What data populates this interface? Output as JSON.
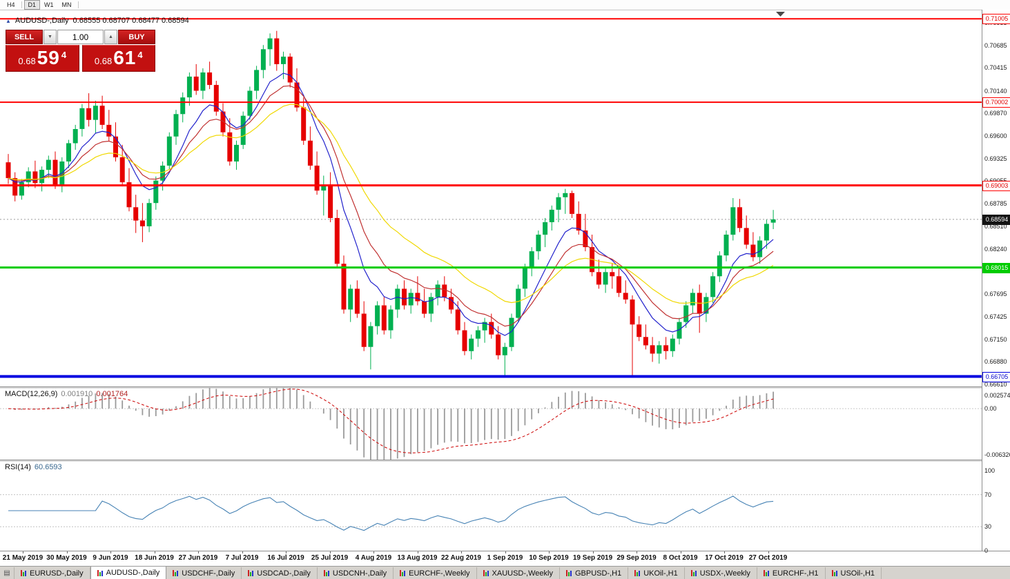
{
  "icons": {
    "symbol_marker": "▲",
    "spinner_down": "▼",
    "spinner_up": "▲",
    "tab_list": "▤"
  },
  "toolbar": {
    "timeframes": [
      {
        "label": "H4",
        "active": false
      },
      {
        "label": "D1",
        "active": true
      },
      {
        "label": "W1",
        "active": false
      },
      {
        "label": "MN",
        "active": false
      }
    ]
  },
  "chart": {
    "symbol_title": "AUDUSD-,Daily",
    "ohlc": "0.68555 0.68707 0.68477 0.68594"
  },
  "trade_panel": {
    "sell_label": "SELL",
    "buy_label": "BUY",
    "volume": "1.00",
    "sell_price": {
      "prefix": "0.68",
      "big": "59",
      "sup": "4"
    },
    "buy_price": {
      "prefix": "0.68",
      "big": "61",
      "sup": "4"
    }
  },
  "macd_panel": {
    "name": "MACD(12,26,9)",
    "value_main": "0.001910",
    "value_signal": "0.001764",
    "scale_top": "0.002574",
    "scale_zero": "0.00",
    "scale_bottom": "-0.006326"
  },
  "rsi_panel": {
    "name": "RSI(14)",
    "value": "60.6593",
    "scale": [
      "100",
      "70",
      "30",
      "0"
    ]
  },
  "tabs": {
    "items": [
      {
        "label": "EURUSD-,Daily",
        "active": false
      },
      {
        "label": "AUDUSD-,Daily",
        "active": true
      },
      {
        "label": "USDCHF-,Daily",
        "active": false
      },
      {
        "label": "USDCAD-,Daily",
        "active": false
      },
      {
        "label": "USDCNH-,Daily",
        "active": false
      },
      {
        "label": "EURCHF-,Weekly",
        "active": false
      },
      {
        "label": "XAUUSD-,Weekly",
        "active": false
      },
      {
        "label": "GBPUSD-,H1",
        "active": false
      },
      {
        "label": "UKOil-,H1",
        "active": false
      },
      {
        "label": "USDX-,Weekly",
        "active": false
      },
      {
        "label": "EURCHF-,H1",
        "active": false
      },
      {
        "label": "USOil-,H1",
        "active": false
      }
    ]
  },
  "chart_data": {
    "type": "candlestick",
    "title": "AUDUSD-,Daily",
    "ylim": [
      0.66585,
      0.71115
    ],
    "layout": {
      "first_x": 12,
      "spacing": 9.72,
      "body_width": 7,
      "grid": false
    },
    "colors": {
      "up": "#00b050",
      "down": "#e60000",
      "background": "#ffffff"
    },
    "y_ticks": [
      "0.70955",
      "0.70685",
      "0.70415",
      "0.70140",
      "0.69870",
      "0.69600",
      "0.69325",
      "0.69055",
      "0.68785",
      "0.68510",
      "0.68240",
      "0.67970",
      "0.67695",
      "0.67425",
      "0.67150",
      "0.66880",
      "0.66610"
    ],
    "x_labels": [
      "21 May 2019",
      "30 May 2019",
      "9 Jun 2019",
      "18 Jun 2019",
      "27 Jun 2019",
      "7 Jul 2019",
      "16 Jul 2019",
      "25 Jul 2019",
      "4 Aug 2019",
      "13 Aug 2019",
      "22 Aug 2019",
      "1 Sep 2019",
      "10 Sep 2019",
      "19 Sep 2019",
      "29 Sep 2019",
      "8 Oct 2019",
      "17 Oct 2019",
      "27 Oct 2019"
    ],
    "current_price": {
      "value": 0.68594,
      "label": "0.68594"
    },
    "hlines": [
      {
        "price": 0.71005,
        "label": "0.71005",
        "color": "#ff0000",
        "width": 2,
        "tag_bg": "#ffffff",
        "tag_fg": "#e00000"
      },
      {
        "price": 0.70002,
        "label": "0.70002",
        "color": "#ff0000",
        "width": 2,
        "tag_bg": "#ffffff",
        "tag_fg": "#e00000"
      },
      {
        "price": 0.69003,
        "label": "0.69003",
        "color": "#ff0000",
        "width": 3,
        "tag_bg": "#ffffff",
        "tag_fg": "#e00000"
      },
      {
        "price": 0.68015,
        "label": "0.68015",
        "color": "#00cc00",
        "width": 3,
        "tag_bg": "#00cc00",
        "tag_fg": "#ffffff"
      },
      {
        "price": 0.66705,
        "label": "0.66705",
        "color": "#0000e0",
        "width": 4,
        "tag_bg": "#ffffff",
        "tag_fg": "#0000cc"
      }
    ],
    "moving_averages": [
      {
        "period": 8,
        "color": "#2222cc"
      },
      {
        "period": 13,
        "color": "#c03030"
      },
      {
        "period": 24,
        "color": "#f0d800"
      }
    ],
    "indicators": {
      "macd": {
        "fast": 12,
        "slow": 26,
        "signal": 9,
        "ylim": [
          -0.006326,
          0.002574
        ],
        "histogram_color": "#9a9a9a",
        "signal_color": "#cc0000",
        "shown_values": [
          0.00191,
          0.001764
        ]
      },
      "rsi": {
        "period": 14,
        "levels": [
          70,
          30
        ],
        "ylim": [
          0,
          100
        ],
        "line_color": "#4682b4",
        "shown_value": 60.6593
      }
    },
    "candles": [
      [
        0.6928,
        0.6938,
        0.6902,
        0.6909
      ],
      [
        0.6909,
        0.6916,
        0.6881,
        0.6888
      ],
      [
        0.6888,
        0.6908,
        0.6883,
        0.6904
      ],
      [
        0.6904,
        0.6922,
        0.6898,
        0.6917
      ],
      [
        0.6917,
        0.693,
        0.6897,
        0.6903
      ],
      [
        0.6903,
        0.6923,
        0.6893,
        0.6919
      ],
      [
        0.6919,
        0.6936,
        0.6909,
        0.6931
      ],
      [
        0.6931,
        0.6941,
        0.6896,
        0.6901
      ],
      [
        0.6901,
        0.6934,
        0.6892,
        0.6929
      ],
      [
        0.6929,
        0.6955,
        0.6921,
        0.6951
      ],
      [
        0.6951,
        0.6973,
        0.6943,
        0.6968
      ],
      [
        0.6968,
        0.6998,
        0.6959,
        0.6993
      ],
      [
        0.6993,
        0.7011,
        0.6971,
        0.6979
      ],
      [
        0.6979,
        0.7002,
        0.6963,
        0.6996
      ],
      [
        0.6996,
        0.7008,
        0.6968,
        0.6973
      ],
      [
        0.6973,
        0.6991,
        0.6953,
        0.6959
      ],
      [
        0.6959,
        0.6976,
        0.6929,
        0.6934
      ],
      [
        0.6934,
        0.6949,
        0.6899,
        0.6904
      ],
      [
        0.6904,
        0.6921,
        0.6869,
        0.6874
      ],
      [
        0.6874,
        0.6889,
        0.6843,
        0.6858
      ],
      [
        0.6858,
        0.6879,
        0.6832,
        0.6851
      ],
      [
        0.6851,
        0.6884,
        0.6844,
        0.6879
      ],
      [
        0.6879,
        0.6911,
        0.6871,
        0.6906
      ],
      [
        0.6906,
        0.6929,
        0.6894,
        0.6924
      ],
      [
        0.6924,
        0.6964,
        0.6919,
        0.6959
      ],
      [
        0.6959,
        0.6991,
        0.6949,
        0.6986
      ],
      [
        0.6986,
        0.7012,
        0.6976,
        0.7006
      ],
      [
        0.7006,
        0.7036,
        0.6996,
        0.7031
      ],
      [
        0.7031,
        0.7046,
        0.7009,
        0.7014
      ],
      [
        0.7014,
        0.7041,
        0.7004,
        0.7036
      ],
      [
        0.7036,
        0.7049,
        0.7016,
        0.7021
      ],
      [
        0.7021,
        0.7026,
        0.6984,
        0.6989
      ],
      [
        0.6989,
        0.6999,
        0.6959,
        0.6964
      ],
      [
        0.6964,
        0.6981,
        0.6924,
        0.6929
      ],
      [
        0.6929,
        0.6954,
        0.6919,
        0.6949
      ],
      [
        0.6949,
        0.6989,
        0.6944,
        0.6984
      ],
      [
        0.6984,
        0.7019,
        0.6979,
        0.7014
      ],
      [
        0.7014,
        0.7044,
        0.7004,
        0.7039
      ],
      [
        0.7039,
        0.7069,
        0.7029,
        0.7064
      ],
      [
        0.7064,
        0.7083,
        0.7044,
        0.7077
      ],
      [
        0.7077,
        0.7086,
        0.7038,
        0.7046
      ],
      [
        0.7046,
        0.7061,
        0.7028,
        0.7055
      ],
      [
        0.7055,
        0.7059,
        0.7018,
        0.7024
      ],
      [
        0.7024,
        0.7041,
        0.6989,
        0.6994
      ],
      [
        0.6994,
        0.7006,
        0.6949,
        0.6954
      ],
      [
        0.6954,
        0.6971,
        0.6919,
        0.6924
      ],
      [
        0.6924,
        0.6941,
        0.6889,
        0.6894
      ],
      [
        0.6894,
        0.6912,
        0.6864,
        0.6901
      ],
      [
        0.6901,
        0.6916,
        0.6856,
        0.6861
      ],
      [
        0.6861,
        0.6871,
        0.6801,
        0.6806
      ],
      [
        0.6806,
        0.6816,
        0.6746,
        0.6751
      ],
      [
        0.6751,
        0.6781,
        0.6736,
        0.6776
      ],
      [
        0.6776,
        0.6786,
        0.6741,
        0.6746
      ],
      [
        0.6746,
        0.6761,
        0.6701,
        0.6706
      ],
      [
        0.6706,
        0.6736,
        0.6679,
        0.6731
      ],
      [
        0.6731,
        0.6761,
        0.6721,
        0.6756
      ],
      [
        0.6756,
        0.6766,
        0.6721,
        0.6726
      ],
      [
        0.6726,
        0.6756,
        0.6716,
        0.6751
      ],
      [
        0.6751,
        0.6781,
        0.6741,
        0.6776
      ],
      [
        0.6776,
        0.6786,
        0.6751,
        0.6756
      ],
      [
        0.6756,
        0.6776,
        0.6746,
        0.6771
      ],
      [
        0.6771,
        0.6791,
        0.6756,
        0.6761
      ],
      [
        0.6761,
        0.6776,
        0.6741,
        0.6746
      ],
      [
        0.6746,
        0.6771,
        0.6736,
        0.6766
      ],
      [
        0.6766,
        0.6786,
        0.6756,
        0.6781
      ],
      [
        0.6781,
        0.6791,
        0.6761,
        0.6766
      ],
      [
        0.6766,
        0.6776,
        0.6746,
        0.6751
      ],
      [
        0.6751,
        0.6761,
        0.6721,
        0.6726
      ],
      [
        0.6726,
        0.6736,
        0.6696,
        0.6701
      ],
      [
        0.6701,
        0.6721,
        0.6691,
        0.6716
      ],
      [
        0.6716,
        0.6731,
        0.6706,
        0.6726
      ],
      [
        0.6726,
        0.6741,
        0.6711,
        0.6736
      ],
      [
        0.6736,
        0.6746,
        0.6716,
        0.6721
      ],
      [
        0.6721,
        0.6731,
        0.6691,
        0.6696
      ],
      [
        0.6696,
        0.6711,
        0.6671,
        0.6706
      ],
      [
        0.6706,
        0.6746,
        0.6701,
        0.6741
      ],
      [
        0.6741,
        0.6781,
        0.6736,
        0.6776
      ],
      [
        0.6776,
        0.6806,
        0.6766,
        0.6801
      ],
      [
        0.6801,
        0.6826,
        0.6791,
        0.6821
      ],
      [
        0.6821,
        0.6846,
        0.6811,
        0.6841
      ],
      [
        0.6841,
        0.6861,
        0.6826,
        0.6856
      ],
      [
        0.6856,
        0.6876,
        0.6846,
        0.6871
      ],
      [
        0.6871,
        0.6891,
        0.6856,
        0.6886
      ],
      [
        0.6886,
        0.6896,
        0.6866,
        0.6891
      ],
      [
        0.6891,
        0.6894,
        0.6861,
        0.6866
      ],
      [
        0.6866,
        0.6881,
        0.6841,
        0.6846
      ],
      [
        0.6846,
        0.6866,
        0.6821,
        0.6826
      ],
      [
        0.6826,
        0.6841,
        0.6791,
        0.6796
      ],
      [
        0.6796,
        0.6811,
        0.6776,
        0.6781
      ],
      [
        0.6781,
        0.6801,
        0.6771,
        0.6796
      ],
      [
        0.6796,
        0.6806,
        0.6776,
        0.6791
      ],
      [
        0.6791,
        0.6801,
        0.6766,
        0.6771
      ],
      [
        0.6771,
        0.6786,
        0.6758,
        0.6763
      ],
      [
        0.6763,
        0.6768,
        0.6671,
        0.6733
      ],
      [
        0.6733,
        0.6743,
        0.6713,
        0.6718
      ],
      [
        0.6718,
        0.6733,
        0.6703,
        0.6708
      ],
      [
        0.6708,
        0.6718,
        0.6688,
        0.6698
      ],
      [
        0.6698,
        0.6713,
        0.6686,
        0.6708
      ],
      [
        0.6708,
        0.6718,
        0.6691,
        0.6701
      ],
      [
        0.6701,
        0.6721,
        0.6694,
        0.6716
      ],
      [
        0.6716,
        0.6741,
        0.6709,
        0.6736
      ],
      [
        0.6736,
        0.6761,
        0.6729,
        0.6756
      ],
      [
        0.6756,
        0.6776,
        0.6746,
        0.6771
      ],
      [
        0.6771,
        0.6781,
        0.6723,
        0.6746
      ],
      [
        0.6746,
        0.6771,
        0.6736,
        0.6766
      ],
      [
        0.6766,
        0.6796,
        0.6759,
        0.6791
      ],
      [
        0.6791,
        0.6821,
        0.6784,
        0.6816
      ],
      [
        0.6816,
        0.6846,
        0.6809,
        0.6841
      ],
      [
        0.6841,
        0.6885,
        0.6834,
        0.6874
      ],
      [
        0.6874,
        0.6884,
        0.6844,
        0.6849
      ],
      [
        0.6849,
        0.6864,
        0.6824,
        0.6829
      ],
      [
        0.6829,
        0.6844,
        0.6809,
        0.6814
      ],
      [
        0.6814,
        0.6839,
        0.6806,
        0.6834
      ],
      [
        0.6834,
        0.6859,
        0.6824,
        0.6854
      ],
      [
        0.68555,
        0.68707,
        0.68477,
        0.68594
      ]
    ]
  }
}
